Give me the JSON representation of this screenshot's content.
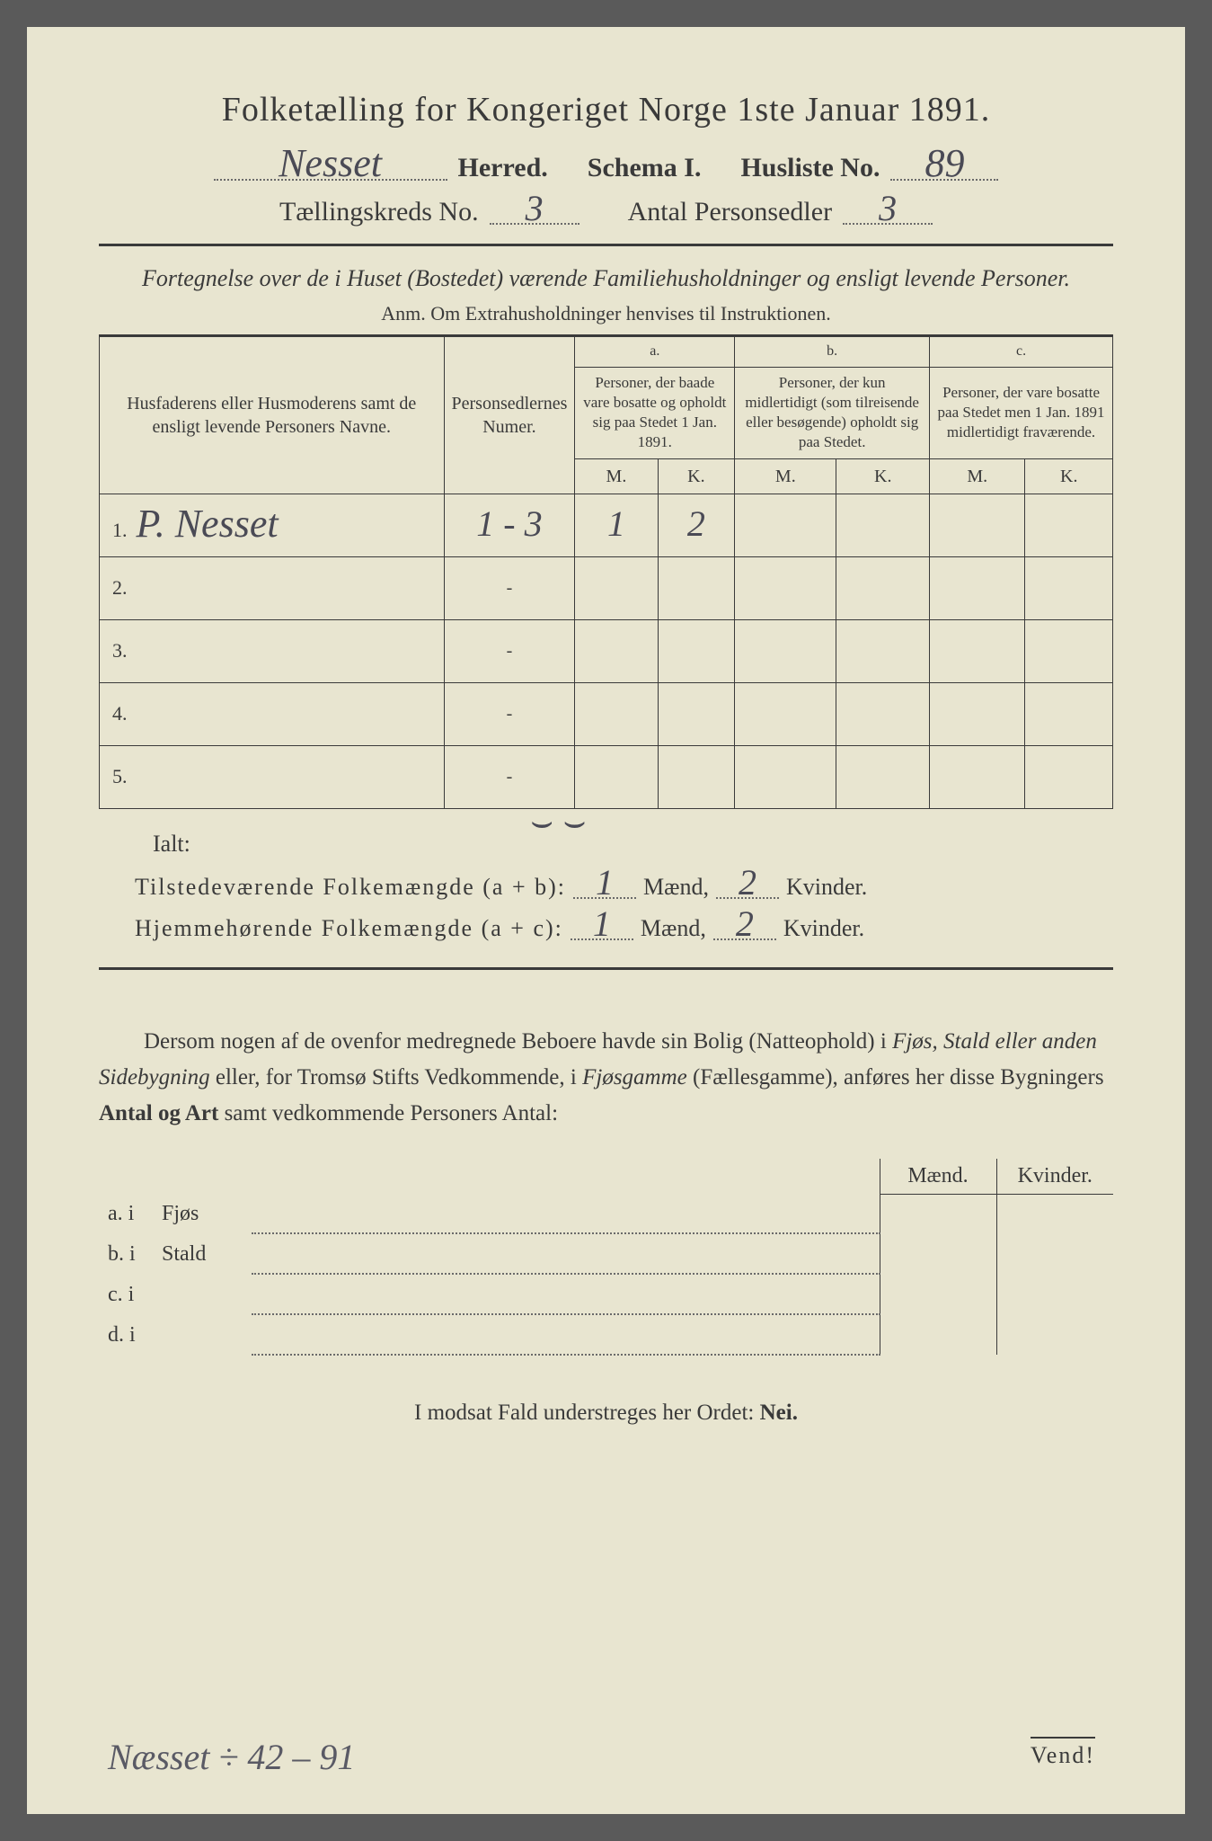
{
  "title": "Folketælling for Kongeriget Norge 1ste Januar 1891.",
  "header": {
    "herred_value": "Nesset",
    "herred_label": "Herred.",
    "schema_label": "Schema I.",
    "husliste_label": "Husliste No.",
    "husliste_value": "89",
    "kreds_label": "Tællingskreds No.",
    "kreds_value": "3",
    "antal_label": "Antal Personsedler",
    "antal_value": "3"
  },
  "subtitle": "Fortegnelse over de i Huset (Bostedet) værende Familiehusholdninger og ensligt levende Personer.",
  "anm": "Anm.  Om Extrahusholdninger henvises til Instruktionen.",
  "columns": {
    "c1": "Husfaderens eller Husmoderens samt de ensligt levende Personers Navne.",
    "c2": "Personsedlernes Numer.",
    "c3_top": "a.",
    "c3": "Personer, der baade vare bosatte og opholdt sig paa Stedet 1 Jan. 1891.",
    "c4_top": "b.",
    "c4": "Personer, der kun midlertidigt (som tilreisende eller besøgende) opholdt sig paa Stedet.",
    "c5_top": "c.",
    "c5": "Personer, der vare bosatte paa Stedet men 1 Jan. 1891 midlertidigt fraværende.",
    "m": "M.",
    "k": "K."
  },
  "rows": [
    {
      "n": "1.",
      "name": "P. Nesset",
      "num": "1 - 3",
      "aM": "1",
      "aK": "2",
      "bM": "",
      "bK": "",
      "cM": "",
      "cK": ""
    },
    {
      "n": "2.",
      "name": "",
      "num": "-",
      "aM": "",
      "aK": "",
      "bM": "",
      "bK": "",
      "cM": "",
      "cK": ""
    },
    {
      "n": "3.",
      "name": "",
      "num": "-",
      "aM": "",
      "aK": "",
      "bM": "",
      "bK": "",
      "cM": "",
      "cK": ""
    },
    {
      "n": "4.",
      "name": "",
      "num": "-",
      "aM": "",
      "aK": "",
      "bM": "",
      "bK": "",
      "cM": "",
      "cK": ""
    },
    {
      "n": "5.",
      "name": "",
      "num": "-",
      "aM": "",
      "aK": "",
      "bM": "",
      "bK": "",
      "cM": "",
      "cK": ""
    }
  ],
  "ialt": "Ialt:",
  "totals": {
    "line1_label": "Tilstedeværende Folkemængde (a + b):",
    "line1_m": "1",
    "line1_k": "2",
    "line2_label": "Hjemmehørende Folkemængde (a + c):",
    "line2_m": "1",
    "line2_k": "2",
    "maend": "Mænd,",
    "kvinder": "Kvinder."
  },
  "paragraph": {
    "p1a": "Dersom nogen af de ovenfor medregnede Beboere havde sin Bolig (Natteophold) i ",
    "p1b": "Fjøs, Stald eller anden Sidebygning",
    "p1c": " eller, for Tromsø Stifts Vedkommende, i ",
    "p1d": "Fjøsgamme",
    "p1e": " (Fællesgamme), anføres her disse Bygningers ",
    "p1f": "Antal og Art",
    "p1g": " samt vedkommende Personers Antal:"
  },
  "fjøs": {
    "maend": "Mænd.",
    "kvinder": "Kvinder.",
    "rows": [
      {
        "lab": "a.  i",
        "word": "Fjøs"
      },
      {
        "lab": "b.  i",
        "word": "Stald"
      },
      {
        "lab": "c.  i",
        "word": ""
      },
      {
        "lab": "d.  i",
        "word": ""
      }
    ]
  },
  "modsat": "I modsat Fald understreges her Ordet: ",
  "nei": "Nei.",
  "vend": "Vend!",
  "scribble": "Næsset ÷ 42 – 91"
}
